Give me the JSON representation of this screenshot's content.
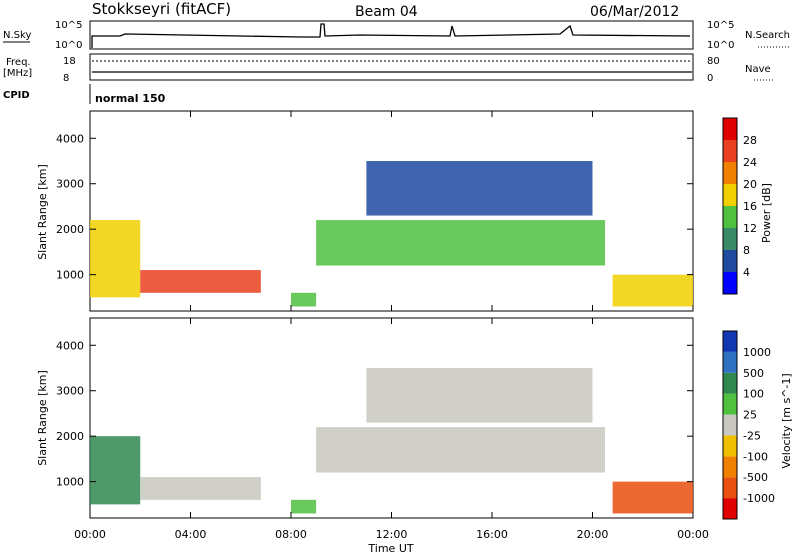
{
  "header": {
    "title": "Stokkseyri (fitACF)",
    "beam": "Beam 04",
    "date": "06/Mar/2012"
  },
  "top_panels": {
    "nsky_label": "N.Sky",
    "nsky_ticks": [
      "10^5",
      "10^0"
    ],
    "nsearch_label": "N.Search",
    "nsearch_ticks": [
      "10^5",
      "10^0"
    ],
    "freq_label": "Freq.",
    "freq_unit": "[MHz]",
    "freq_ticks": [
      "18",
      "8"
    ],
    "nave_label": "Nave",
    "nave_ticks": [
      "80",
      "0"
    ],
    "cpid_label": "CPID",
    "cpid_value": "normal 150"
  },
  "axes": {
    "ylabel": "Slant Range [km]",
    "xlabel": "Time UT",
    "xticks": [
      "00:00",
      "04:00",
      "08:00",
      "12:00",
      "16:00",
      "20:00",
      "00:00"
    ],
    "yticks": [
      "1000",
      "2000",
      "3000",
      "4000"
    ]
  },
  "power_scale": {
    "label": "Power [dB]",
    "ticks": [
      "4",
      "8",
      "12",
      "16",
      "20",
      "24",
      "28"
    ],
    "colors": [
      "#0000ff",
      "#1f4aa0",
      "#3a8a6a",
      "#50c040",
      "#f0d000",
      "#f08000",
      "#e84020",
      "#e00000"
    ]
  },
  "velocity_scale": {
    "label": "Velocity [m s^-1]",
    "ticks": [
      "1000",
      "500",
      "100",
      "25",
      "-25",
      "-100",
      "-500",
      "-1000"
    ],
    "colors": [
      "#1038b0",
      "#3070c0",
      "#308850",
      "#50c040",
      "#c8c8c0",
      "#f0c000",
      "#f08000",
      "#e85010",
      "#e00000"
    ]
  },
  "chart_data": [
    {
      "type": "heatmap",
      "title": "Power [dB]",
      "xlabel": "Time UT",
      "ylabel": "Slant Range [km]",
      "xlim": [
        0,
        24
      ],
      "ylim": [
        200,
        4600
      ],
      "x": [
        0,
        4,
        8,
        12,
        16,
        20,
        24
      ],
      "regions": [
        {
          "t": [
            0,
            2
          ],
          "range": [
            500,
            2200
          ],
          "value": 16
        },
        {
          "t": [
            2,
            6.8
          ],
          "range": [
            600,
            1100
          ],
          "value": 24
        },
        {
          "t": [
            8,
            9
          ],
          "range": [
            300,
            600
          ],
          "value": 14
        },
        {
          "t": [
            9,
            20.5
          ],
          "range": [
            1200,
            2200
          ],
          "value": 14
        },
        {
          "t": [
            11,
            20
          ],
          "range": [
            2300,
            3500
          ],
          "value": 6
        },
        {
          "t": [
            20.8,
            24
          ],
          "range": [
            300,
            1000
          ],
          "value": 18
        }
      ]
    },
    {
      "type": "heatmap",
      "title": "Velocity [m s^-1]",
      "xlabel": "Time UT",
      "ylabel": "Slant Range [km]",
      "xlim": [
        0,
        24
      ],
      "ylim": [
        200,
        4600
      ],
      "x": [
        0,
        4,
        8,
        12,
        16,
        20,
        24
      ],
      "regions": [
        {
          "t": [
            0,
            2
          ],
          "range": [
            500,
            2000
          ],
          "value": 300
        },
        {
          "t": [
            2,
            6.8
          ],
          "range": [
            600,
            1100
          ],
          "value": 0
        },
        {
          "t": [
            8,
            9
          ],
          "range": [
            300,
            600
          ],
          "value": 50
        },
        {
          "t": [
            9,
            20.5
          ],
          "range": [
            1200,
            2200
          ],
          "value": 0
        },
        {
          "t": [
            11,
            20
          ],
          "range": [
            2300,
            3500
          ],
          "value": 0
        },
        {
          "t": [
            20.8,
            24
          ],
          "range": [
            300,
            1000
          ],
          "value": -300
        }
      ]
    }
  ]
}
